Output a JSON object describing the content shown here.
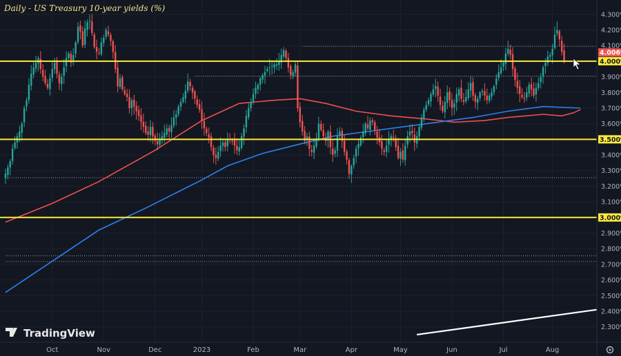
{
  "chart_data": {
    "type": "candlestick",
    "title": "Daily - US Treasury 10-year yields (%)",
    "xlabel": "",
    "ylabel": "",
    "ylim": [
      2.25,
      4.33
    ],
    "y_ticks": [
      "4.300%",
      "4.200%",
      "4.100%",
      "4.000%",
      "3.900%",
      "3.800%",
      "3.700%",
      "3.600%",
      "3.500%",
      "3.400%",
      "3.300%",
      "3.200%",
      "3.100%",
      "3.000%",
      "2.900%",
      "2.800%",
      "2.700%",
      "2.600%",
      "2.500%",
      "2.400%",
      "2.300%"
    ],
    "x_ticks": [
      {
        "label": "Oct",
        "t": 20
      },
      {
        "label": "Nov",
        "t": 42
      },
      {
        "label": "Dec",
        "t": 64
      },
      {
        "label": "2023",
        "t": 84
      },
      {
        "label": "Feb",
        "t": 106
      },
      {
        "label": "Mar",
        "t": 126
      },
      {
        "label": "Apr",
        "t": 148
      },
      {
        "label": "May",
        "t": 169
      },
      {
        "label": "Jun",
        "t": 191
      },
      {
        "label": "Jul",
        "t": 213
      },
      {
        "label": "Aug",
        "t": 234
      }
    ],
    "t_range": [
      0,
      253
    ],
    "close": [
      3.28,
      3.32,
      3.36,
      3.44,
      3.48,
      3.52,
      3.55,
      3.6,
      3.7,
      3.75,
      3.85,
      3.92,
      3.96,
      3.99,
      4.02,
      3.95,
      3.9,
      3.86,
      3.83,
      3.89,
      3.95,
      3.99,
      3.92,
      3.86,
      3.9,
      3.96,
      4.02,
      4.05,
      3.99,
      4.04,
      4.12,
      4.22,
      4.19,
      4.1,
      4.21,
      4.25,
      4.26,
      4.18,
      4.09,
      4.06,
      4.05,
      4.12,
      4.15,
      4.2,
      4.17,
      4.13,
      4.06,
      3.95,
      3.84,
      3.89,
      3.82,
      3.79,
      3.77,
      3.7,
      3.75,
      3.71,
      3.68,
      3.65,
      3.61,
      3.58,
      3.54,
      3.53,
      3.58,
      3.52,
      3.49,
      3.47,
      3.5,
      3.52,
      3.54,
      3.57,
      3.55,
      3.59,
      3.64,
      3.66,
      3.71,
      3.74,
      3.77,
      3.81,
      3.87,
      3.84,
      3.8,
      3.76,
      3.72,
      3.69,
      3.62,
      3.57,
      3.54,
      3.51,
      3.45,
      3.4,
      3.38,
      3.42,
      3.46,
      3.48,
      3.45,
      3.5,
      3.5,
      3.49,
      3.46,
      3.43,
      3.45,
      3.52,
      3.57,
      3.65,
      3.7,
      3.74,
      3.79,
      3.83,
      3.85,
      3.89,
      3.91,
      3.93,
      3.95,
      3.96,
      3.97,
      3.98,
      3.98,
      4.0,
      4.04,
      4.07,
      4.02,
      3.96,
      3.91,
      3.93,
      3.98,
      3.7,
      3.61,
      3.55,
      3.49,
      3.52,
      3.44,
      3.42,
      3.46,
      3.5,
      3.6,
      3.56,
      3.52,
      3.49,
      3.55,
      3.45,
      3.4,
      3.43,
      3.52,
      3.55,
      3.49,
      3.42,
      3.37,
      3.28,
      3.33,
      3.38,
      3.44,
      3.47,
      3.51,
      3.55,
      3.6,
      3.57,
      3.62,
      3.61,
      3.56,
      3.51,
      3.48,
      3.44,
      3.42,
      3.46,
      3.5,
      3.52,
      3.51,
      3.45,
      3.38,
      3.42,
      3.37,
      3.46,
      3.52,
      3.55,
      3.54,
      3.48,
      3.52,
      3.58,
      3.64,
      3.69,
      3.72,
      3.75,
      3.79,
      3.82,
      3.84,
      3.78,
      3.72,
      3.68,
      3.74,
      3.8,
      3.75,
      3.7,
      3.73,
      3.79,
      3.82,
      3.76,
      3.74,
      3.77,
      3.82,
      3.86,
      3.78,
      3.74,
      3.76,
      3.8,
      3.81,
      3.78,
      3.75,
      3.78,
      3.8,
      3.84,
      3.89,
      3.93,
      3.96,
      3.99,
      4.05,
      4.08,
      4.04,
      3.95,
      3.88,
      3.83,
      3.79,
      3.77,
      3.76,
      3.8,
      3.85,
      3.82,
      3.78,
      3.83,
      3.86,
      3.9,
      3.96,
      3.99,
      4.03,
      4.04,
      4.08,
      4.17,
      4.2,
      4.14,
      4.06,
      4.0
    ],
    "series": [
      {
        "type": "line",
        "color": "#f0504b",
        "points": [
          [
            0,
            2.97
          ],
          [
            20,
            3.09
          ],
          [
            40,
            3.23
          ],
          [
            64,
            3.43
          ],
          [
            84,
            3.62
          ],
          [
            100,
            3.73
          ],
          [
            115,
            3.75
          ],
          [
            126,
            3.76
          ],
          [
            137,
            3.73
          ],
          [
            150,
            3.68
          ],
          [
            165,
            3.65
          ],
          [
            180,
            3.63
          ],
          [
            192,
            3.61
          ],
          [
            205,
            3.62
          ],
          [
            215,
            3.64
          ],
          [
            230,
            3.66
          ],
          [
            238,
            3.65
          ],
          [
            243,
            3.67
          ],
          [
            246,
            3.69
          ]
        ]
      },
      {
        "type": "line",
        "color": "#2f80ed",
        "points": [
          [
            0,
            2.52
          ],
          [
            20,
            2.72
          ],
          [
            40,
            2.92
          ],
          [
            60,
            3.06
          ],
          [
            84,
            3.24
          ],
          [
            95,
            3.33
          ],
          [
            110,
            3.41
          ],
          [
            126,
            3.47
          ],
          [
            140,
            3.52
          ],
          [
            155,
            3.55
          ],
          [
            170,
            3.58
          ],
          [
            185,
            3.61
          ],
          [
            200,
            3.64
          ],
          [
            215,
            3.68
          ],
          [
            230,
            3.71
          ],
          [
            246,
            3.7
          ]
        ]
      },
      {
        "type": "line",
        "color": "#ffffff",
        "points": [
          [
            176,
            2.25
          ],
          [
            253,
            2.41
          ]
        ]
      }
    ],
    "horizontal_lines": [
      {
        "y": 4.0,
        "color": "#ffeb3b",
        "label": "4.000%"
      },
      {
        "y": 3.5,
        "color": "#ffeb3b",
        "label": "3.500%"
      },
      {
        "y": 3.0,
        "color": "#ffeb3b",
        "label": "3.000%"
      }
    ],
    "dotted_lines": [
      {
        "y": 4.095,
        "from": 127,
        "to": 253
      },
      {
        "y": 3.905,
        "from": 81,
        "to": 253
      },
      {
        "y": 3.255,
        "from": 0,
        "to": 253
      },
      {
        "y": 2.755,
        "from": 0,
        "to": 253
      },
      {
        "y": 2.718,
        "from": 0,
        "to": 253
      }
    ],
    "last_price": {
      "value": 4.006,
      "label": "4.006%"
    },
    "branding": "TradingView",
    "colors": {
      "up": "#26a69a",
      "down": "#ef5350",
      "background": "#131722",
      "grid": "#1e222d"
    }
  }
}
